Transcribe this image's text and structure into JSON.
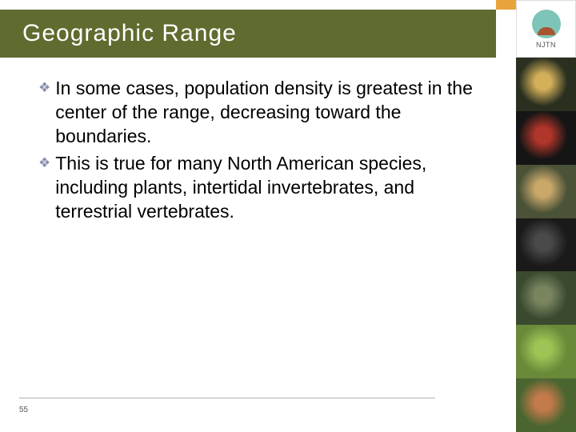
{
  "title": "Geographic Range",
  "bullets": [
    "In some cases, population density is greatest in the center of the range, decreasing toward the boundaries.",
    "This is true for many North American species, including plants, intertidal invertebrates, and terrestrial vertebrates."
  ],
  "logo_label": "NJTN",
  "slide_number": "55",
  "colors": {
    "title_bar_bg": "#606b2f",
    "title_text": "#ffffff",
    "orange_accent": "#e8a33d",
    "bullet_diamond": "#8a8fb0",
    "body_text": "#000000",
    "footer_line": "#b0b0b0"
  },
  "thumbnails": [
    {
      "bg": "#2a3020",
      "accent": "#d4b05a"
    },
    {
      "bg": "#151515",
      "accent": "#b0352a"
    },
    {
      "bg": "#4a5238",
      "accent": "#c9a86a"
    },
    {
      "bg": "#1a1a1a",
      "accent": "#4a4a4a"
    },
    {
      "bg": "#3a4a2f",
      "accent": "#7a8560"
    },
    {
      "bg": "#6a8a3a",
      "accent": "#9fc455"
    },
    {
      "bg": "#4a6530",
      "accent": "#c47a4a"
    }
  ]
}
